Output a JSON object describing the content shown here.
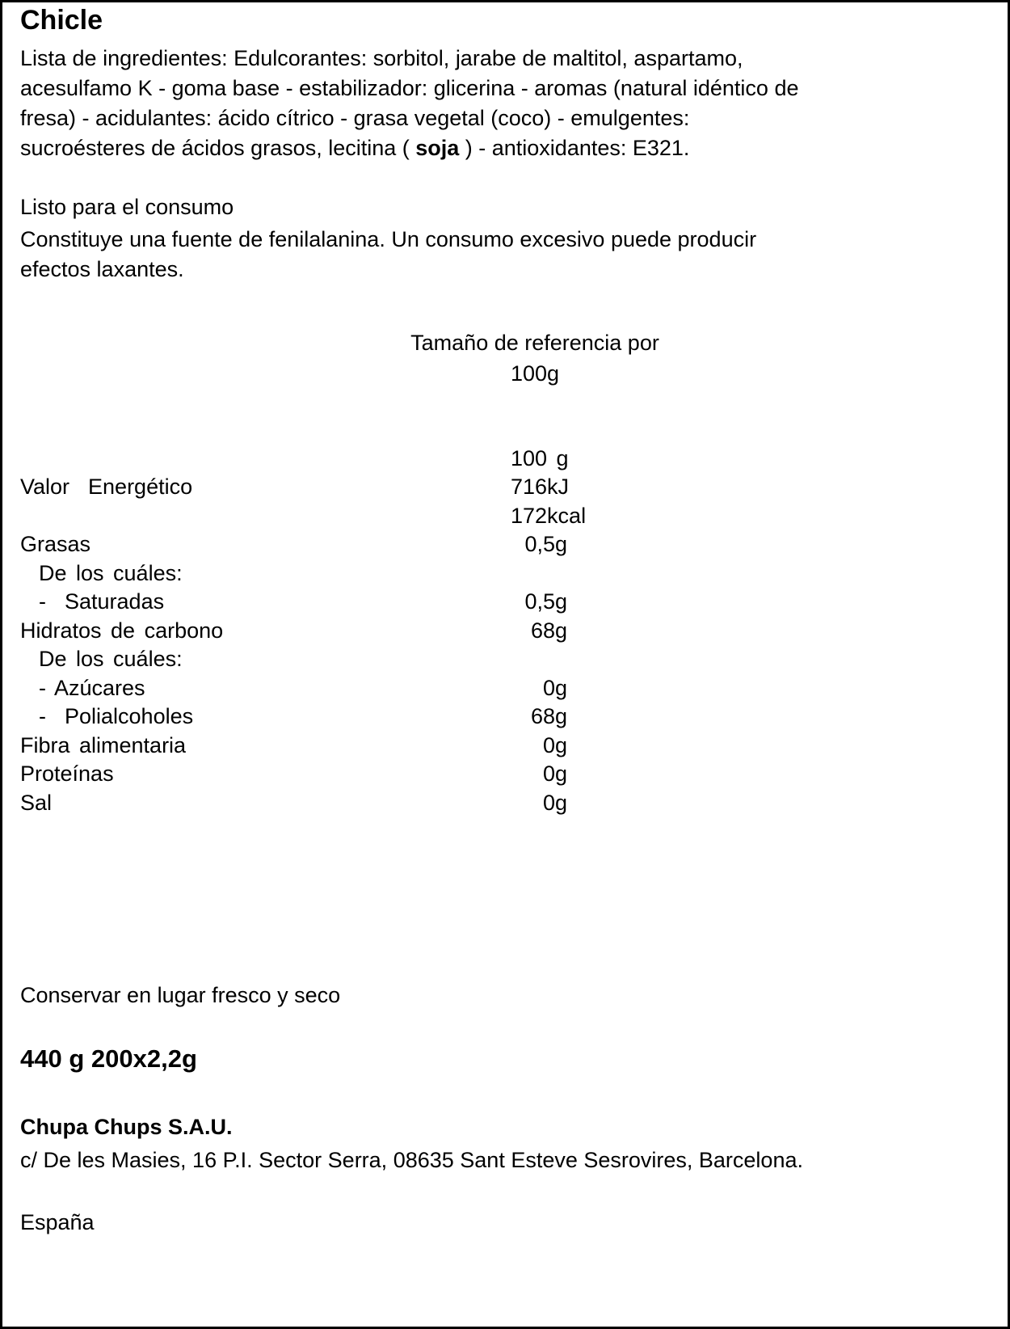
{
  "title": "Chicle",
  "ingredients": {
    "lines": [
      "Lista de ingredientes: Edulcorantes: sorbitol, jarabe de maltitol, aspartamo,",
      "acesulfamo K - goma base - estabilizador: glicerina - aromas (natural idéntico de",
      "fresa) - acidulantes: ácido cítrico - grasa vegetal (coco) - emulgentes:"
    ],
    "last_before": "sucroésteres de ácidos grasos, lecitina ( ",
    "allergen": "soja",
    "last_after": " ) - antioxidantes: E321."
  },
  "usage": "Listo para el consumo",
  "warning": [
    "Constituye una fuente de fenilalanina. Un consumo excesivo puede producir",
    "efectos laxantes."
  ],
  "reference": {
    "line1": "Tamaño de referencia por",
    "line2": "100g"
  },
  "nutrition": {
    "header": "100 g",
    "energy_label": "Valor  Energético",
    "energy_kj": "716kJ",
    "energy_kcal": "172kcal",
    "rows": [
      {
        "label": "Grasas",
        "value": "0,5g"
      },
      {
        "label": "  De los cuáles:",
        "value": ""
      },
      {
        "label": "  -  Saturadas",
        "value": "0,5g"
      },
      {
        "label": "Hidratos de carbono",
        "value": "68g"
      },
      {
        "label": "  De los cuáles:",
        "value": ""
      },
      {
        "label": "  - Azúcares",
        "value": "0g"
      },
      {
        "label": "  -  Polialcoholes",
        "value": "68g"
      },
      {
        "label": "Fibra alimentaria",
        "value": "0g"
      },
      {
        "label": "Proteínas",
        "value": "0g"
      },
      {
        "label": "Sal",
        "value": "0g"
      }
    ]
  },
  "storage": "Conservar en lugar fresco y seco",
  "net_weight": "440 g 200x2,2g",
  "company": "Chupa Chups S.A.U.",
  "address": "c/ De les Masies, 16 P.I. Sector Serra, 08635 Sant Esteve Sesrovires, Barcelona.",
  "country": "España"
}
